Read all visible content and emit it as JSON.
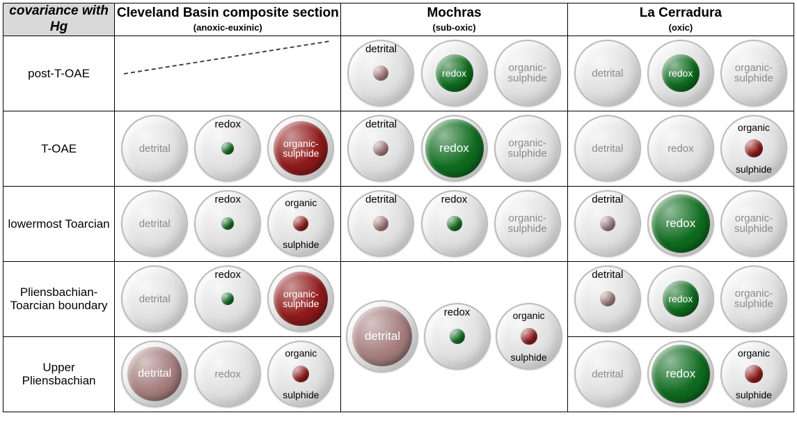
{
  "header_corner": "covariance with Hg",
  "sections": [
    {
      "title": "Cleveland Basin composite section",
      "subtitle": "(anoxic-euxinic)"
    },
    {
      "title": "Mochras",
      "subtitle": "(sub-oxic)"
    },
    {
      "title": "La Cerradura",
      "subtitle": "(oxic)"
    }
  ],
  "rows": [
    "post-T-OAE",
    "T-OAE",
    "lowermost Toarcian",
    "Pliensbachian-Toarcian boundary",
    "Upper Pliensbachian"
  ],
  "colors": {
    "detrital": "#a57d7d",
    "redox": "#0f6b1f",
    "organic": "#8f1a1a",
    "grey_text": "#8a8a8a",
    "white": "#ffffff"
  },
  "outer_diameter": 92,
  "cells": {
    "cleveland": [
      {
        "type": "diagonal"
      },
      {
        "type": "triple",
        "items": [
          {
            "kind": "detrital",
            "size": 0,
            "outer_label": "detrital"
          },
          {
            "kind": "redox",
            "size": 18,
            "label_above": "redox"
          },
          {
            "kind": "organic",
            "size": 78,
            "inner_label": "organic-sulphide",
            "text_color": "white",
            "fs": 14
          }
        ]
      },
      {
        "type": "triple",
        "items": [
          {
            "kind": "detrital",
            "size": 0,
            "outer_label": "detrital"
          },
          {
            "kind": "redox",
            "size": 18,
            "label_above": "redox"
          },
          {
            "kind": "organic",
            "size": 22,
            "split_label": [
              "organic",
              "sulphide"
            ]
          }
        ]
      },
      {
        "type": "triple",
        "items": [
          {
            "kind": "detrital",
            "size": 0,
            "outer_label": "detrital"
          },
          {
            "kind": "redox",
            "size": 18,
            "label_above": "redox"
          },
          {
            "kind": "organic",
            "size": 78,
            "inner_label": "organic-sulphide",
            "text_color": "white",
            "fs": 14
          }
        ]
      },
      {
        "type": "triple",
        "items": [
          {
            "kind": "detrital",
            "size": 78,
            "inner_label": "detrital",
            "text_color": "white",
            "fs": 16
          },
          {
            "kind": "redox",
            "size": 0,
            "outer_label": "redox"
          },
          {
            "kind": "organic",
            "size": 24,
            "split_label": [
              "organic",
              "sulphide"
            ]
          }
        ]
      }
    ],
    "mochras": [
      {
        "type": "triple",
        "items": [
          {
            "kind": "detrital",
            "size": 22,
            "label_above": "detrital"
          },
          {
            "kind": "redox",
            "size": 54,
            "inner_label": "redox",
            "text_color": "white",
            "fs": 14
          },
          {
            "kind": "organic",
            "size": 0,
            "outer_label": "organic-\nsulphide"
          }
        ]
      },
      {
        "type": "triple",
        "items": [
          {
            "kind": "detrital",
            "size": 22,
            "label_above": "detrital"
          },
          {
            "kind": "redox",
            "size": 84,
            "inner_label": "redox",
            "text_color": "white",
            "fs": 17
          },
          {
            "kind": "organic",
            "size": 0,
            "outer_label": "organic-\nsulphide"
          }
        ]
      },
      {
        "type": "triple",
        "items": [
          {
            "kind": "detrital",
            "size": 22,
            "label_above": "detrital"
          },
          {
            "kind": "redox",
            "size": 22,
            "label_above": "redox"
          },
          {
            "kind": "organic",
            "size": 0,
            "outer_label": "organic-\nsulphide"
          }
        ]
      },
      {
        "type": "merged_triple",
        "items": [
          {
            "kind": "detrital",
            "size": 86,
            "inner_label": "detrital",
            "text_color": "white",
            "fs": 17
          },
          {
            "kind": "redox",
            "size": 22,
            "label_above": "redox"
          },
          {
            "kind": "organic",
            "size": 24,
            "split_label": [
              "organic",
              "sulphide"
            ]
          }
        ]
      }
    ],
    "lacerradura": [
      {
        "type": "triple",
        "items": [
          {
            "kind": "detrital",
            "size": 0,
            "outer_label": "detrital"
          },
          {
            "kind": "redox",
            "size": 54,
            "inner_label": "redox",
            "text_color": "white",
            "fs": 14
          },
          {
            "kind": "organic",
            "size": 0,
            "outer_label": "organic-\nsulphide"
          }
        ]
      },
      {
        "type": "triple",
        "items": [
          {
            "kind": "detrital",
            "size": 0,
            "outer_label": "detrital"
          },
          {
            "kind": "redox",
            "size": 0,
            "outer_label": "redox"
          },
          {
            "kind": "organic",
            "size": 26,
            "split_label": [
              "organic",
              "sulphide"
            ]
          }
        ]
      },
      {
        "type": "triple",
        "items": [
          {
            "kind": "detrital",
            "size": 22,
            "label_above": "detrital"
          },
          {
            "kind": "redox",
            "size": 84,
            "inner_label": "redox",
            "text_color": "white",
            "fs": 17
          },
          {
            "kind": "organic",
            "size": 0,
            "outer_label": "organic-\nsulphide"
          }
        ]
      },
      {
        "type": "triple",
        "items": [
          {
            "kind": "detrital",
            "size": 22,
            "label_above": "detrital"
          },
          {
            "kind": "redox",
            "size": 52,
            "inner_label": "redox",
            "text_color": "white",
            "fs": 14
          },
          {
            "kind": "organic",
            "size": 0,
            "outer_label": "organic-\nsulphide"
          }
        ]
      },
      {
        "type": "triple",
        "items": [
          {
            "kind": "detrital",
            "size": 0,
            "outer_label": "detrital"
          },
          {
            "kind": "redox",
            "size": 84,
            "inner_label": "redox",
            "text_color": "white",
            "fs": 17
          },
          {
            "kind": "organic",
            "size": 26,
            "split_label": [
              "organic",
              "sulphide"
            ]
          }
        ]
      }
    ]
  }
}
